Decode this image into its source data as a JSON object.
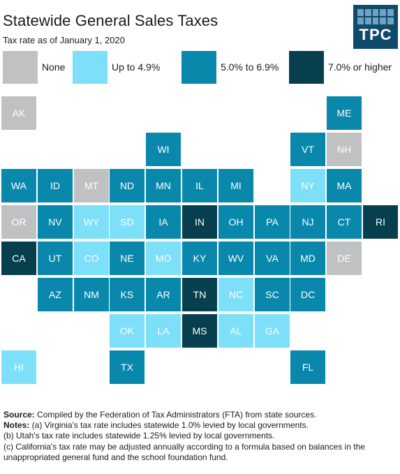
{
  "title": "Statewide General Sales Taxes",
  "subtitle": "Tax rate as of January 1, 2020",
  "logo": "TPC",
  "colors": {
    "none": "#c0c1c3",
    "low": "#7ddff8",
    "mid": "#0988ac",
    "high": "#073f4f"
  },
  "legend": [
    {
      "category": "none",
      "label": "None"
    },
    {
      "category": "low",
      "label": "Up to 4.9%"
    },
    {
      "category": "mid",
      "label": "5.0% to 6.9%"
    },
    {
      "category": "high",
      "label": "7.0% or higher"
    }
  ],
  "states": [
    {
      "abbr": "AK",
      "cat": "none"
    },
    {
      "abbr": "ME",
      "cat": "mid"
    },
    {
      "abbr": "WI",
      "cat": "mid"
    },
    {
      "abbr": "VT",
      "cat": "mid"
    },
    {
      "abbr": "NH",
      "cat": "none"
    },
    {
      "abbr": "WA",
      "cat": "mid"
    },
    {
      "abbr": "ID",
      "cat": "mid"
    },
    {
      "abbr": "MT",
      "cat": "none"
    },
    {
      "abbr": "ND",
      "cat": "mid"
    },
    {
      "abbr": "MN",
      "cat": "mid"
    },
    {
      "abbr": "IL",
      "cat": "mid"
    },
    {
      "abbr": "MI",
      "cat": "mid"
    },
    {
      "abbr": "NY",
      "cat": "low"
    },
    {
      "abbr": "MA",
      "cat": "mid"
    },
    {
      "abbr": "OR",
      "cat": "none"
    },
    {
      "abbr": "NV",
      "cat": "mid"
    },
    {
      "abbr": "WY",
      "cat": "low"
    },
    {
      "abbr": "SD",
      "cat": "low"
    },
    {
      "abbr": "IA",
      "cat": "mid"
    },
    {
      "abbr": "IN",
      "cat": "high"
    },
    {
      "abbr": "OH",
      "cat": "mid"
    },
    {
      "abbr": "PA",
      "cat": "mid"
    },
    {
      "abbr": "NJ",
      "cat": "mid"
    },
    {
      "abbr": "CT",
      "cat": "mid"
    },
    {
      "abbr": "RI",
      "cat": "high"
    },
    {
      "abbr": "CA",
      "cat": "high"
    },
    {
      "abbr": "UT",
      "cat": "mid"
    },
    {
      "abbr": "CO",
      "cat": "low"
    },
    {
      "abbr": "NE",
      "cat": "mid"
    },
    {
      "abbr": "MO",
      "cat": "low"
    },
    {
      "abbr": "KY",
      "cat": "mid"
    },
    {
      "abbr": "WV",
      "cat": "mid"
    },
    {
      "abbr": "VA",
      "cat": "mid"
    },
    {
      "abbr": "MD",
      "cat": "mid"
    },
    {
      "abbr": "DE",
      "cat": "none"
    },
    {
      "abbr": "AZ",
      "cat": "mid"
    },
    {
      "abbr": "NM",
      "cat": "mid"
    },
    {
      "abbr": "KS",
      "cat": "mid"
    },
    {
      "abbr": "AR",
      "cat": "mid"
    },
    {
      "abbr": "TN",
      "cat": "high"
    },
    {
      "abbr": "NC",
      "cat": "low"
    },
    {
      "abbr": "SC",
      "cat": "mid"
    },
    {
      "abbr": "DC",
      "cat": "mid"
    },
    {
      "abbr": "OK",
      "cat": "low"
    },
    {
      "abbr": "LA",
      "cat": "low"
    },
    {
      "abbr": "MS",
      "cat": "high"
    },
    {
      "abbr": "AL",
      "cat": "low"
    },
    {
      "abbr": "GA",
      "cat": "low"
    },
    {
      "abbr": "HI",
      "cat": "low"
    },
    {
      "abbr": "TX",
      "cat": "mid"
    },
    {
      "abbr": "FL",
      "cat": "mid"
    }
  ],
  "notes": {
    "source_label": "Source:",
    "source_text": " Compiled by the Federation of Tax Administrators (FTA) from state sources.",
    "notes_label": "Notes:",
    "note_a": "  (a) Virginia's tax rate includes statewide 1.0% levied by local governments.",
    "note_b": "(b) Utah's tax rate includes statewide 1.25% levied by local governments.",
    "note_c": "(c) California's tax rate may be adjusted annually according to a formula based on balances in the unappropriated general fund and the school foundation fund."
  }
}
